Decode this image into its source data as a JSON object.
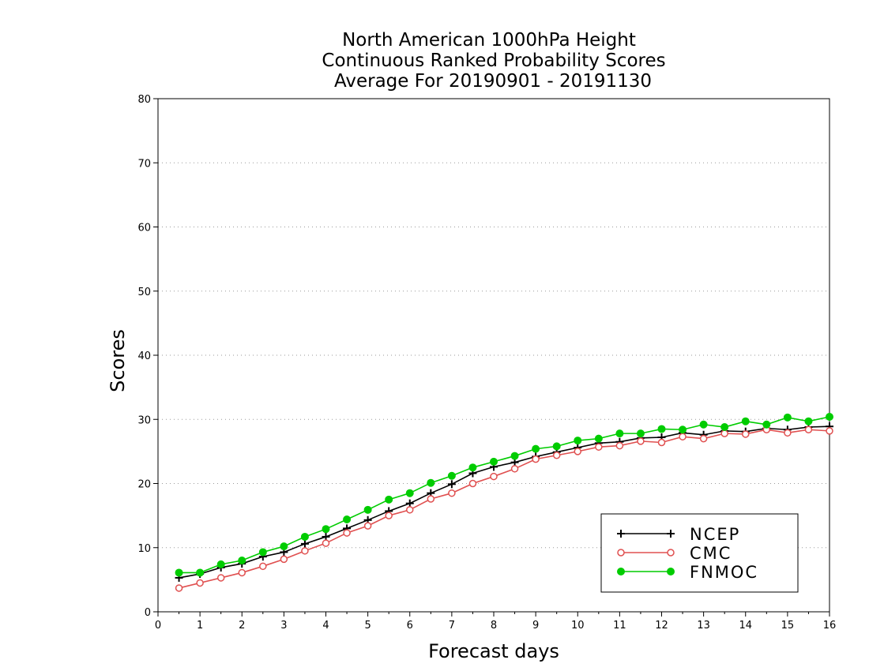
{
  "chart_data": {
    "type": "line",
    "title": [
      "North American 1000hPa Height",
      "Continuous Ranked Probability Scores",
      "Average For 20190901 - 20191130"
    ],
    "xlabel": "Forecast days",
    "ylabel": "Scores",
    "xlim": [
      0,
      16
    ],
    "ylim": [
      0,
      80
    ],
    "xticks": [
      0,
      1,
      2,
      3,
      4,
      5,
      6,
      7,
      8,
      9,
      10,
      11,
      12,
      13,
      14,
      15,
      16
    ],
    "yticks": [
      0,
      10,
      20,
      30,
      40,
      50,
      60,
      70,
      80
    ],
    "grid": "horizontal dotted",
    "legend_position": "bottom-right",
    "x": [
      0.5,
      1,
      1.5,
      2,
      2.5,
      3,
      3.5,
      4,
      4.5,
      5,
      5.5,
      6,
      6.5,
      7,
      7.5,
      8,
      8.5,
      9,
      9.5,
      10,
      10.5,
      11,
      11.5,
      12,
      12.5,
      13,
      13.5,
      14,
      14.5,
      15,
      15.5,
      16
    ],
    "series": [
      {
        "name": "NCEP",
        "color": "#000000",
        "marker": "plus",
        "values": [
          5.3,
          5.9,
          6.9,
          7.5,
          8.6,
          9.3,
          10.6,
          11.7,
          13.0,
          14.3,
          15.7,
          16.9,
          18.5,
          19.9,
          21.6,
          22.6,
          23.3,
          24.2,
          24.9,
          25.6,
          26.3,
          26.5,
          27.1,
          27.2,
          27.9,
          27.6,
          28.2,
          28.1,
          28.6,
          28.4,
          28.8,
          28.9
        ]
      },
      {
        "name": "CMC",
        "color": "#e05050",
        "marker": "open-circle",
        "values": [
          3.7,
          4.5,
          5.3,
          6.1,
          7.1,
          8.2,
          9.5,
          10.7,
          12.3,
          13.4,
          15.0,
          15.9,
          17.6,
          18.5,
          20.0,
          21.1,
          22.3,
          23.8,
          24.4,
          25.0,
          25.7,
          25.9,
          26.6,
          26.4,
          27.3,
          27.0,
          27.8,
          27.7,
          28.4,
          27.9,
          28.4,
          28.2
        ]
      },
      {
        "name": "FNMOC",
        "color": "#00cc00",
        "marker": "filled-circle",
        "values": [
          6.1,
          6.1,
          7.4,
          8.0,
          9.3,
          10.2,
          11.7,
          12.9,
          14.4,
          15.9,
          17.5,
          18.5,
          20.1,
          21.2,
          22.5,
          23.4,
          24.3,
          25.4,
          25.8,
          26.7,
          27.0,
          27.8,
          27.8,
          28.5,
          28.4,
          29.2,
          28.8,
          29.7,
          29.2,
          30.3,
          29.7,
          30.4
        ]
      }
    ]
  }
}
